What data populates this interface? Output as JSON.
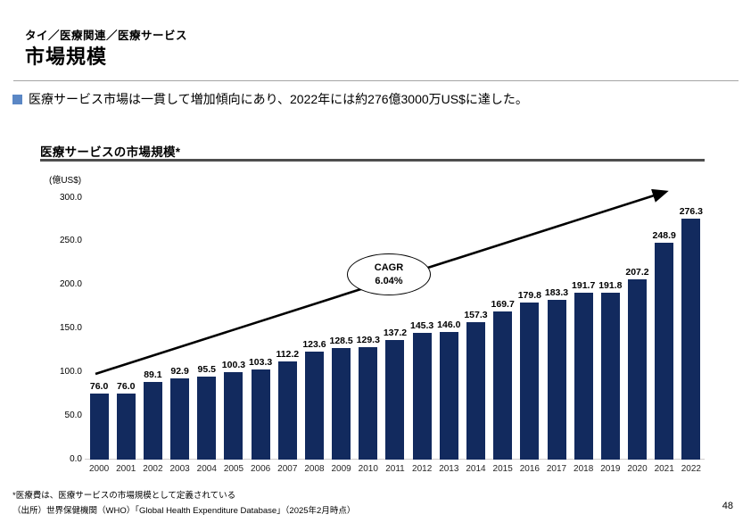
{
  "page": {
    "breadcrumb": "タイ／医療関連／医療サービス",
    "title": "市場規模",
    "bullet": "医療サービス市場は一貫して増加傾向にあり、2022年には約276億3000万US$に達した。",
    "footnote1": "*医療費は、医療サービスの市場規模として定義されている",
    "footnote2": "（出所）世界保健機関（WHO）「Global Health Expenditure Database」（2025年2月時点）",
    "page_number": "48"
  },
  "chart": {
    "title": "医療サービスの市場規模*",
    "unit_label": "(億US$)",
    "cagr_label": "CAGR",
    "cagr_value": "6.04%"
  },
  "colors": {
    "bar": "#122a5e",
    "bullet": "#5b87c5",
    "baseline": "#d0cece",
    "title_rule": "#4d4d4d",
    "arrow": "#000000"
  },
  "chart_data": {
    "type": "bar",
    "title": "医療サービスの市場規模*",
    "xlabel": "",
    "ylabel": "億US$",
    "ylim": [
      0,
      300
    ],
    "yticks": [
      0,
      50,
      100,
      150,
      200,
      250,
      300
    ],
    "grid": false,
    "legend": "none",
    "categories": [
      "2000",
      "2001",
      "2002",
      "2003",
      "2004",
      "2005",
      "2006",
      "2007",
      "2008",
      "2009",
      "2010",
      "2011",
      "2012",
      "2013",
      "2014",
      "2015",
      "2016",
      "2017",
      "2018",
      "2019",
      "2020",
      "2021",
      "2022"
    ],
    "values": [
      76.0,
      76.0,
      89.1,
      92.9,
      95.5,
      100.3,
      103.3,
      112.2,
      123.6,
      128.5,
      129.3,
      137.2,
      145.3,
      146.0,
      157.3,
      169.7,
      179.8,
      183.3,
      191.7,
      191.8,
      207.2,
      248.9,
      276.3
    ],
    "annotations": [
      {
        "label": "CAGR",
        "value": "6.04%",
        "shape": "ellipse-on-trend-arrow"
      }
    ]
  }
}
